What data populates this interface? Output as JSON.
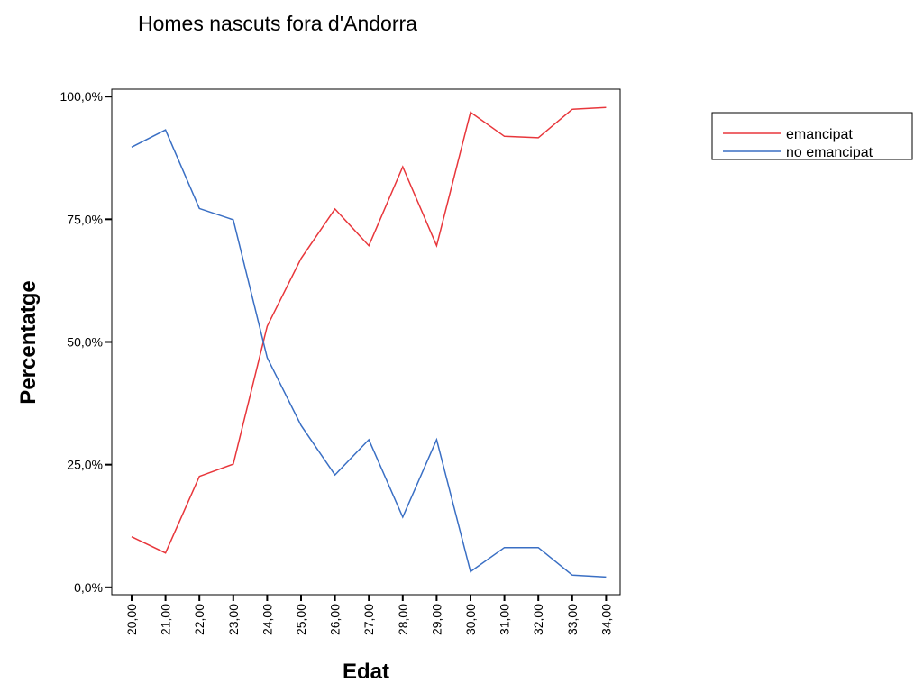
{
  "chart_data": {
    "type": "line",
    "title": "Homes nascuts fora d'Andorra",
    "xlabel": "Edat",
    "ylabel": "Percentatge",
    "categories": [
      "20,00",
      "21,00",
      "22,00",
      "23,00",
      "24,00",
      "25,00",
      "26,00",
      "27,00",
      "28,00",
      "29,00",
      "30,00",
      "31,00",
      "32,00",
      "33,00",
      "34,00"
    ],
    "y_ticks": [
      {
        "value": 0,
        "label": "0,0%"
      },
      {
        "value": 25,
        "label": "25,0%"
      },
      {
        "value": 50,
        "label": "50,0%"
      },
      {
        "value": 75,
        "label": "75,0%"
      },
      {
        "value": 100,
        "label": "100,0%"
      }
    ],
    "ylim": [
      -1.5,
      101.5
    ],
    "grid": false,
    "legend_position": "top-right-outside",
    "series": [
      {
        "name": "emancipat",
        "color": "#e8363b",
        "values": [
          10.3,
          7.0,
          22.6,
          25.1,
          53.2,
          67.0,
          77.1,
          69.6,
          85.7,
          69.6,
          96.8,
          91.9,
          91.6,
          97.4,
          97.8
        ]
      },
      {
        "name": "no emancipat",
        "color": "#3a6fc4",
        "values": [
          89.7,
          93.2,
          77.2,
          74.9,
          46.8,
          33.0,
          22.9,
          30.1,
          14.3,
          30.1,
          3.2,
          8.1,
          8.1,
          2.5,
          2.1
        ]
      }
    ]
  }
}
